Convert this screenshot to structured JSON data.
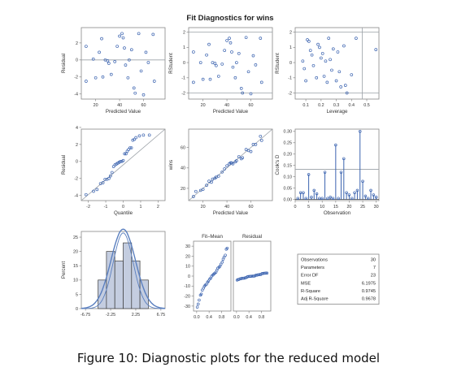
{
  "figure": {
    "title": "Fit Diagnostics for wins",
    "caption": "Figure 10: Diagnostic plots for the reduced model"
  },
  "colors": {
    "marker": "#3c64b0",
    "frame": "#888888",
    "refline": "#9aa0a6",
    "histfill": "#c4cde0",
    "histedge": "#3a3a3a",
    "curve": "#5a7fbf"
  },
  "chart_data": [
    {
      "id": "residual-vs-predicted",
      "type": "scatter",
      "xlabel": "Predicted Value",
      "ylabel": "Residual",
      "xlim": [
        8,
        78
      ],
      "ylim": [
        -4.6,
        3.8
      ],
      "xticks": [
        20,
        40,
        60
      ],
      "yticks": [
        -4,
        -2,
        0,
        2
      ],
      "reference_lines": {
        "y": [
          0
        ]
      },
      "points": [
        [
          12,
          1.6
        ],
        [
          12,
          -2.5
        ],
        [
          18,
          0.1
        ],
        [
          20,
          -2.1
        ],
        [
          23,
          0.9
        ],
        [
          25,
          2.5
        ],
        [
          26,
          -2.0
        ],
        [
          28,
          0
        ],
        [
          30,
          -0.1
        ],
        [
          31,
          -0.4
        ],
        [
          33,
          -1.7
        ],
        [
          36,
          -0.2
        ],
        [
          38,
          1.6
        ],
        [
          40,
          2.8
        ],
        [
          42,
          3.1
        ],
        [
          43,
          2.6
        ],
        [
          44,
          1.4
        ],
        [
          45,
          -0.6
        ],
        [
          47,
          -2.1
        ],
        [
          48,
          0
        ],
        [
          50,
          1.2
        ],
        [
          52,
          -3.3
        ],
        [
          53,
          -3.9
        ],
        [
          56,
          3.1
        ],
        [
          58,
          -1.3
        ],
        [
          60,
          -4.1
        ],
        [
          62,
          0.9
        ],
        [
          64,
          -0.3
        ],
        [
          68,
          3.0
        ],
        [
          69,
          -2.5
        ]
      ]
    },
    {
      "id": "rstudent-vs-predicted",
      "type": "scatter",
      "xlabel": "Predicted Value",
      "ylabel": "RStudent",
      "xlim": [
        8,
        78
      ],
      "ylim": [
        -2.4,
        2.3
      ],
      "xticks": [
        20,
        40,
        60
      ],
      "yticks": [
        -2,
        -1,
        0,
        1,
        2
      ],
      "reference_lines": {
        "y": [
          -2,
          2
        ]
      },
      "points": [
        [
          12,
          0.7
        ],
        [
          12,
          -1.3
        ],
        [
          18,
          0.0
        ],
        [
          20,
          -1.1
        ],
        [
          23,
          0.5
        ],
        [
          25,
          1.2
        ],
        [
          26,
          -1.1
        ],
        [
          28,
          0
        ],
        [
          30,
          -0.05
        ],
        [
          31,
          -0.2
        ],
        [
          33,
          -0.9
        ],
        [
          36,
          -0.1
        ],
        [
          38,
          0.8
        ],
        [
          40,
          1.45
        ],
        [
          42,
          1.6
        ],
        [
          43,
          1.3
        ],
        [
          44,
          0.7
        ],
        [
          45,
          -0.3
        ],
        [
          47,
          -1.0
        ],
        [
          48,
          0
        ],
        [
          50,
          0.6
        ],
        [
          52,
          -1.7
        ],
        [
          53,
          -2.0
        ],
        [
          56,
          1.65
        ],
        [
          58,
          -0.6
        ],
        [
          60,
          -2.05
        ],
        [
          62,
          0.45
        ],
        [
          64,
          -0.15
        ],
        [
          68,
          1.6
        ],
        [
          69,
          -1.3
        ]
      ]
    },
    {
      "id": "rstudent-vs-leverage",
      "type": "scatter",
      "xlabel": "Leverage",
      "ylabel": "RStudent",
      "xlim": [
        0.03,
        0.58
      ],
      "ylim": [
        -2.4,
        2.3
      ],
      "xticks": [
        0.1,
        0.2,
        0.3,
        0.4,
        0.5
      ],
      "xticklabels": [
        "0.1",
        "0.2",
        "0.3",
        "0.4",
        "0.5"
      ],
      "yticks": [
        -2,
        -1,
        0,
        1,
        2
      ],
      "reference_lines": {
        "y": [
          -2,
          2
        ],
        "x": [
          0.47
        ]
      },
      "points": [
        [
          0.08,
          0.1
        ],
        [
          0.09,
          -0.4
        ],
        [
          0.1,
          -1.2
        ],
        [
          0.11,
          1.5
        ],
        [
          0.12,
          1.4
        ],
        [
          0.13,
          0.8
        ],
        [
          0.14,
          0.5
        ],
        [
          0.15,
          -0.2
        ],
        [
          0.17,
          -1.0
        ],
        [
          0.18,
          1.2
        ],
        [
          0.19,
          1.0
        ],
        [
          0.2,
          0.3
        ],
        [
          0.21,
          0.6
        ],
        [
          0.22,
          -0.9
        ],
        [
          0.23,
          0.1
        ],
        [
          0.24,
          -1.3
        ],
        [
          0.25,
          1.6
        ],
        [
          0.26,
          0.2
        ],
        [
          0.27,
          -0.5
        ],
        [
          0.28,
          0.9
        ],
        [
          0.3,
          -1.2
        ],
        [
          0.31,
          0.7
        ],
        [
          0.32,
          -0.6
        ],
        [
          0.33,
          -1.6
        ],
        [
          0.35,
          1.1
        ],
        [
          0.36,
          -1.5
        ],
        [
          0.37,
          -2.0
        ],
        [
          0.4,
          -0.8
        ],
        [
          0.43,
          1.6
        ],
        [
          0.56,
          0.85
        ]
      ]
    },
    {
      "id": "residual-qq",
      "type": "scatter",
      "xlabel": "Quantile",
      "ylabel": "Residual",
      "xlim": [
        -2.4,
        2.4
      ],
      "ylim": [
        -4.6,
        3.8
      ],
      "xticks": [
        -2,
        -1,
        0,
        1,
        2
      ],
      "yticks": [
        -4,
        -2,
        0,
        2,
        4
      ],
      "reference_lines": {
        "line": [
          [
            -2.4,
            -4.6
          ],
          [
            2.4,
            3.8
          ]
        ]
      },
      "points": [
        [
          -2.13,
          -3.9
        ],
        [
          -1.7,
          -3.5
        ],
        [
          -1.5,
          -3.3
        ],
        [
          -1.3,
          -2.6
        ],
        [
          -1.16,
          -2.5
        ],
        [
          -1.04,
          -2.1
        ],
        [
          -0.93,
          -2.1
        ],
        [
          -0.82,
          -2.0
        ],
        [
          -0.73,
          -1.7
        ],
        [
          -0.64,
          -1.3
        ],
        [
          -0.55,
          -0.6
        ],
        [
          -0.47,
          -0.4
        ],
        [
          -0.39,
          -0.3
        ],
        [
          -0.31,
          -0.2
        ],
        [
          -0.23,
          -0.1
        ],
        [
          -0.16,
          0
        ],
        [
          -0.08,
          0
        ],
        [
          0,
          0.1
        ],
        [
          0.08,
          0.9
        ],
        [
          0.16,
          0.9
        ],
        [
          0.23,
          1.2
        ],
        [
          0.31,
          1.4
        ],
        [
          0.39,
          1.6
        ],
        [
          0.47,
          1.6
        ],
        [
          0.55,
          2.5
        ],
        [
          0.64,
          2.6
        ],
        [
          0.73,
          2.8
        ],
        [
          0.93,
          3.0
        ],
        [
          1.16,
          3.1
        ],
        [
          1.5,
          3.1
        ]
      ]
    },
    {
      "id": "observed-vs-predicted",
      "type": "scatter",
      "xlabel": "Predicted Value",
      "ylabel": "wins",
      "xlim": [
        8,
        78
      ],
      "ylim": [
        8,
        78
      ],
      "xticks": [
        20,
        40,
        60
      ],
      "yticks": [
        20,
        40,
        60
      ],
      "reference_lines": {
        "line": [
          [
            8,
            8
          ],
          [
            78,
            78
          ]
        ]
      },
      "points": [
        [
          12,
          12
        ],
        [
          14,
          17
        ],
        [
          18,
          18
        ],
        [
          20,
          19
        ],
        [
          23,
          23
        ],
        [
          25,
          27
        ],
        [
          27,
          26
        ],
        [
          28,
          29
        ],
        [
          30,
          30
        ],
        [
          31,
          31
        ],
        [
          33,
          32
        ],
        [
          36,
          36
        ],
        [
          38,
          39
        ],
        [
          40,
          42
        ],
        [
          42,
          44
        ],
        [
          43,
          45
        ],
        [
          44,
          45
        ],
        [
          45,
          44
        ],
        [
          47,
          46
        ],
        [
          48,
          47
        ],
        [
          50,
          51
        ],
        [
          52,
          49
        ],
        [
          53,
          50
        ],
        [
          56,
          58
        ],
        [
          58,
          57
        ],
        [
          60,
          56
        ],
        [
          62,
          63
        ],
        [
          64,
          63
        ],
        [
          68,
          71
        ],
        [
          69,
          67
        ]
      ]
    },
    {
      "id": "cooks-d",
      "type": "bar",
      "xlabel": "Observation",
      "ylabel": "Cook's D",
      "xlim": [
        0,
        31
      ],
      "ylim": [
        -0.005,
        0.31
      ],
      "xticks": [
        0,
        5,
        10,
        15,
        20,
        25,
        30
      ],
      "yticks": [
        0,
        0.05,
        0.1,
        0.15,
        0.2,
        0.25,
        0.3
      ],
      "yticklabels": [
        "0.00",
        "0.05",
        "0.10",
        "0.15",
        "0.20",
        "0.25",
        "0.30"
      ],
      "reference_lines": {
        "y": [
          0.133
        ]
      },
      "x": [
        1,
        2,
        3,
        4,
        5,
        6,
        7,
        8,
        9,
        10,
        11,
        12,
        13,
        14,
        15,
        16,
        17,
        18,
        19,
        20,
        21,
        22,
        23,
        24,
        25,
        26,
        27,
        28,
        29,
        30
      ],
      "values": [
        0.005,
        0.03,
        0.03,
        0.005,
        0.11,
        0.01,
        0.04,
        0.025,
        0.005,
        0.005,
        0.12,
        0.005,
        0.01,
        0.005,
        0.24,
        0.005,
        0.12,
        0.18,
        0.03,
        0.02,
        0.005,
        0.03,
        0.04,
        0.3,
        0.08,
        0.015,
        0.005,
        0.04,
        0.02,
        0.01
      ]
    },
    {
      "id": "residual-histogram",
      "type": "bar",
      "xlabel": "",
      "ylabel": "Percent",
      "xlim": [
        -7.5,
        7.5
      ],
      "ylim": [
        0,
        27
      ],
      "xticks": [
        -6.75,
        -2.25,
        2.25,
        6.75
      ],
      "xticklabels": [
        "-6.75",
        "-2.25",
        "2.25",
        "6.75"
      ],
      "yticks": [
        0,
        5,
        10,
        15,
        20,
        25
      ],
      "bins": [
        [
          -4.5,
          -3.0,
          10
        ],
        [
          -3.0,
          -1.5,
          20
        ],
        [
          -1.5,
          0,
          16.7
        ],
        [
          0,
          1.5,
          23
        ],
        [
          1.5,
          3.0,
          16.7
        ],
        [
          3.0,
          4.5,
          10
        ]
      ],
      "curves": {
        "normal": {
          "mean": 0,
          "sd": 2.2,
          "scale": 27.8
        },
        "kernel": {
          "mean": 0,
          "sd": 1.8,
          "scale": 26.5
        }
      }
    },
    {
      "id": "residual-fit-spread",
      "type": "scatter",
      "xlabel": "",
      "ylabel": "",
      "panel_titles": [
        "Fit–Mean",
        "Residual"
      ],
      "ylim": [
        -35,
        35
      ],
      "yticks": [
        -30,
        -20,
        -10,
        0,
        10,
        20,
        30
      ],
      "xlim": [
        -0.1,
        1.1
      ],
      "xticks": [
        0,
        0.4,
        0.8
      ],
      "xticklabels": [
        "0.0",
        "0.4",
        "0.8"
      ],
      "fit_mean": [
        [
          0.02,
          -31
        ],
        [
          0.05,
          -28
        ],
        [
          0.08,
          -24
        ],
        [
          0.12,
          -19
        ],
        [
          0.15,
          -18
        ],
        [
          0.18,
          -14
        ],
        [
          0.22,
          -12
        ],
        [
          0.25,
          -10
        ],
        [
          0.28,
          -9
        ],
        [
          0.32,
          -8
        ],
        [
          0.35,
          -6
        ],
        [
          0.38,
          -5
        ],
        [
          0.42,
          -3
        ],
        [
          0.45,
          -2
        ],
        [
          0.48,
          0
        ],
        [
          0.52,
          1
        ],
        [
          0.55,
          2
        ],
        [
          0.58,
          3
        ],
        [
          0.62,
          4
        ],
        [
          0.65,
          6
        ],
        [
          0.68,
          8
        ],
        [
          0.72,
          9
        ],
        [
          0.75,
          10
        ],
        [
          0.78,
          12
        ],
        [
          0.82,
          14
        ],
        [
          0.85,
          17
        ],
        [
          0.88,
          19
        ],
        [
          0.92,
          21
        ],
        [
          0.95,
          27
        ],
        [
          0.98,
          28
        ]
      ],
      "residual": [
        [
          0.02,
          -4
        ],
        [
          0.05,
          -3.5
        ],
        [
          0.08,
          -3.3
        ],
        [
          0.12,
          -2.6
        ],
        [
          0.15,
          -2.5
        ],
        [
          0.18,
          -2.1
        ],
        [
          0.22,
          -2.1
        ],
        [
          0.25,
          -2
        ],
        [
          0.28,
          -1.7
        ],
        [
          0.32,
          -1.3
        ],
        [
          0.35,
          -0.6
        ],
        [
          0.38,
          -0.4
        ],
        [
          0.42,
          -0.3
        ],
        [
          0.45,
          -0.2
        ],
        [
          0.48,
          -0.1
        ],
        [
          0.52,
          0
        ],
        [
          0.55,
          0
        ],
        [
          0.58,
          0.1
        ],
        [
          0.62,
          0.9
        ],
        [
          0.65,
          0.9
        ],
        [
          0.68,
          1.2
        ],
        [
          0.72,
          1.4
        ],
        [
          0.75,
          1.6
        ],
        [
          0.78,
          1.6
        ],
        [
          0.82,
          2.5
        ],
        [
          0.85,
          2.6
        ],
        [
          0.88,
          2.8
        ],
        [
          0.92,
          3
        ],
        [
          0.95,
          3.1
        ],
        [
          0.98,
          3.1
        ]
      ]
    },
    {
      "id": "fit-statistics",
      "type": "table",
      "rows": [
        {
          "label": "Observations",
          "value": "30"
        },
        {
          "label": "Parameters",
          "value": "7"
        },
        {
          "label": "Error DF",
          "value": "23"
        },
        {
          "label": "MSE",
          "value": "6.1975"
        },
        {
          "label": "R-Square",
          "value": "0.9745"
        },
        {
          "label": "Adj R-Square",
          "value": "0.9678"
        }
      ]
    }
  ]
}
